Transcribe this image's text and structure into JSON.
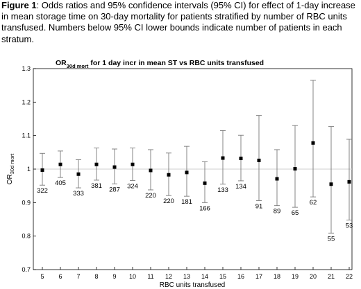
{
  "caption": {
    "label": "Figure 1",
    "text": ": Odds ratios and 95% confidence intervals (95% CI) for effect of 1-day increase in mean storage time on 30-day mortality for patients stratified by number of RBC units transfused. Numbers below 95% CI lower bounds indicate number of patients in each stratum."
  },
  "chart_data": {
    "type": "scatter",
    "title_pre": "OR",
    "title_sub": "30d mort",
    "title_post": " for 1 day incr in mean ST vs RBC units transfused",
    "xlabel": "RBC units transfused",
    "ylabel_pre": "OR",
    "ylabel_sub": "30d mort",
    "ylim": [
      0.7,
      1.3
    ],
    "yticks": [
      "0.7",
      "0.8",
      "0.9",
      "1",
      "1.1",
      "1.2",
      "1.3"
    ],
    "reference_line": 1,
    "points": [
      {
        "x": "5",
        "or": 0.997,
        "lower": 0.952,
        "upper": 1.047,
        "n": "322"
      },
      {
        "x": "6",
        "or": 1.014,
        "lower": 0.975,
        "upper": 1.054,
        "n": "405"
      },
      {
        "x": "7",
        "or": 0.985,
        "lower": 0.944,
        "upper": 1.028,
        "n": "333"
      },
      {
        "x": "8",
        "or": 1.014,
        "lower": 0.967,
        "upper": 1.063,
        "n": "381"
      },
      {
        "x": "9",
        "or": 1.006,
        "lower": 0.956,
        "upper": 1.06,
        "n": "287"
      },
      {
        "x": "10",
        "or": 1.014,
        "lower": 0.966,
        "upper": 1.063,
        "n": "324"
      },
      {
        "x": "11",
        "or": 0.996,
        "lower": 0.938,
        "upper": 1.058,
        "n": "220"
      },
      {
        "x": "12",
        "or": 0.983,
        "lower": 0.921,
        "upper": 1.048,
        "n": "220"
      },
      {
        "x": "13",
        "or": 0.99,
        "lower": 0.919,
        "upper": 1.068,
        "n": "181"
      },
      {
        "x": "14",
        "or": 0.958,
        "lower": 0.9,
        "upper": 1.022,
        "n": "166"
      },
      {
        "x": "15",
        "or": 1.033,
        "lower": 0.955,
        "upper": 1.115,
        "n": "133"
      },
      {
        "x": "16",
        "or": 1.032,
        "lower": 0.965,
        "upper": 1.101,
        "n": "134"
      },
      {
        "x": "17",
        "or": 1.026,
        "lower": 0.906,
        "upper": 1.16,
        "n": "91"
      },
      {
        "x": "18",
        "or": 0.971,
        "lower": 0.891,
        "upper": 1.058,
        "n": "89"
      },
      {
        "x": "19",
        "or": 1.001,
        "lower": 0.886,
        "upper": 1.13,
        "n": "65"
      },
      {
        "x": "20",
        "or": 1.078,
        "lower": 0.917,
        "upper": 1.265,
        "n": "62"
      },
      {
        "x": "21",
        "or": 0.955,
        "lower": 0.809,
        "upper": 1.127,
        "n": "55"
      },
      {
        "x": "22",
        "or": 0.962,
        "lower": 0.848,
        "upper": 1.089,
        "n": "53"
      }
    ]
  }
}
